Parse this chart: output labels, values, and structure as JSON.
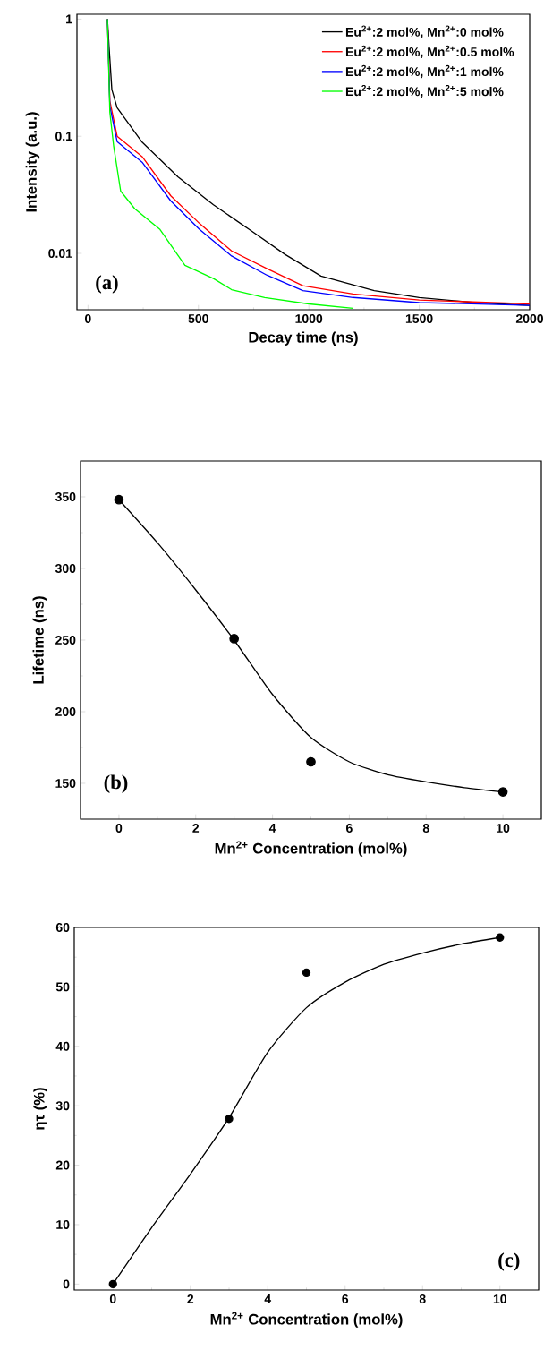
{
  "chart_data": [
    {
      "type": "line",
      "xlabel": "Decay time (ns)",
      "ylabel": "Intensity (a.u.)",
      "annotations": [
        "(a)"
      ],
      "log": "y",
      "legend": "top right",
      "xlim": [
        -50,
        2000
      ],
      "ylim": [
        0.0033,
        1.1
      ],
      "xticks": [
        0,
        500,
        1000,
        1500,
        2000
      ],
      "yticks": [
        1,
        0.1,
        0.01
      ],
      "series": [
        {
          "name": "Eu$^{2+}$:2 mol%, Mn$^{2+}$:0 mol%",
          "color": "#000000",
          "x": [
            88,
            95,
            108,
            132,
            245,
            407,
            568,
            730,
            892,
            1055,
            1296,
            1500,
            1750,
            2000
          ],
          "values": [
            1,
            0.6,
            0.25,
            0.175,
            0.089,
            0.045,
            0.026,
            0.016,
            0.0098,
            0.0064,
            0.0048,
            0.0042,
            0.0038,
            0.0036
          ]
        },
        {
          "name": "Eu$^{2+}$:2 mol%, Mn$^{2+}$:0.5 mol%",
          "color": "#ff0000",
          "x": [
            88,
            99,
            132,
            245,
            375,
            505,
            650,
            811,
            973,
            1200,
            1500,
            2000
          ],
          "values": [
            1,
            0.2,
            0.1,
            0.067,
            0.031,
            0.018,
            0.0105,
            0.0074,
            0.0053,
            0.0045,
            0.004,
            0.0037
          ]
        },
        {
          "name": "Eu$^{2+}$:2 mol%, Mn$^{2+}$:1 mol%",
          "color": "#0000ff",
          "x": [
            88,
            99,
            132,
            245,
            375,
            505,
            650,
            811,
            973,
            1200,
            1500,
            2000
          ],
          "values": [
            1,
            0.18,
            0.09,
            0.06,
            0.028,
            0.016,
            0.0095,
            0.0065,
            0.0048,
            0.0042,
            0.0038,
            0.0036
          ]
        },
        {
          "name": "Eu$^{2+}$:2 mol%, Mn$^{2+}$:5 mol%",
          "color": "#00ff00",
          "x": [
            88,
            99,
            116,
            148,
            212,
            326,
            439,
            568,
            650,
            800,
            1000,
            1200
          ],
          "values": [
            1,
            0.16,
            0.083,
            0.034,
            0.024,
            0.016,
            0.0079,
            0.0061,
            0.0049,
            0.0042,
            0.0037,
            0.0034
          ]
        }
      ]
    },
    {
      "type": "scatter",
      "xlabel": "Mn$^{2+}$ Concentration (mol%)",
      "ylabel": "Lifetime (ns)",
      "annotations": [
        "(b)"
      ],
      "marker": "circle",
      "xlim": [
        -1,
        11
      ],
      "ylim": [
        125,
        375
      ],
      "xticks": [
        0,
        2,
        4,
        6,
        8,
        10
      ],
      "yticks": [
        150,
        200,
        250,
        300,
        350
      ],
      "series": [
        {
          "type": "scatter",
          "color": "#000000",
          "x": [
            0,
            3,
            5,
            10
          ],
          "values": [
            348,
            251,
            165,
            144
          ]
        },
        {
          "type": "line",
          "marker": "none",
          "color": "#000000",
          "x": [
            0,
            1,
            2,
            3,
            4,
            5,
            6,
            7,
            8,
            9,
            10
          ],
          "values": [
            348,
            318,
            285,
            250,
            212,
            182,
            165,
            156,
            151,
            147,
            144
          ]
        }
      ]
    },
    {
      "type": "scatter",
      "xlabel": "Mn$^{2+}$ Concentration (mol%)",
      "ylabel": "ητ (%)",
      "annotations": [
        "(c)"
      ],
      "marker": "circle",
      "xlim": [
        -1,
        11
      ],
      "ylim": [
        -1,
        60
      ],
      "xticks": [
        0,
        2,
        4,
        6,
        8,
        10
      ],
      "yticks": [
        0,
        10,
        20,
        30,
        40,
        50,
        60
      ],
      "series": [
        {
          "type": "scatter",
          "color": "#000000",
          "x": [
            0,
            3,
            5,
            10
          ],
          "values": [
            0,
            27.8,
            52.4,
            58.3
          ]
        },
        {
          "type": "line",
          "marker": "none",
          "color": "#000000",
          "x": [
            0,
            1,
            2,
            3,
            4,
            5,
            6,
            7,
            8,
            9,
            10
          ],
          "values": [
            0,
            9.5,
            18.5,
            28,
            39,
            46.5,
            50.8,
            53.8,
            55.7,
            57.2,
            58.3
          ]
        }
      ]
    }
  ]
}
